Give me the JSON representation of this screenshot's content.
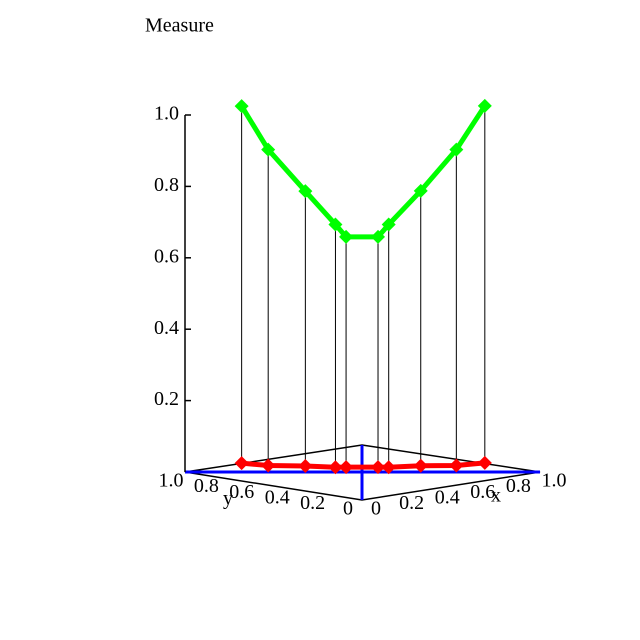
{
  "chart_data": {
    "type": "line3d",
    "title": "Measure",
    "xlabel": "x",
    "ylabel": "y",
    "xlim": [
      0,
      1
    ],
    "ylim": [
      0,
      1
    ],
    "zlim": [
      0,
      1
    ],
    "xticks": [
      0,
      0.2,
      0.4,
      0.6,
      0.8,
      {
        "value": 1,
        "label": "1.0"
      }
    ],
    "yticks": [
      0,
      0.2,
      0.4,
      0.6,
      0.8,
      {
        "value": 1,
        "label": "1.0"
      }
    ],
    "zticks": [
      0.2,
      0.4,
      0.6,
      0.8,
      {
        "value": 1,
        "label": "1.0"
      }
    ],
    "stems": true,
    "series": [
      {
        "color": "#00ff00",
        "x": [
          0,
          0,
          0,
          0,
          0,
          0.09,
          0.15,
          0.33,
          0.53,
          0.69
        ],
        "y": [
          0.68,
          0.53,
          0.32,
          0.15,
          0.09,
          0,
          0,
          0,
          0,
          0
        ],
        "z": [
          1.05,
          0.94,
          0.84,
          0.76,
          0.73,
          0.73,
          0.76,
          0.84,
          0.94,
          1.05
        ]
      },
      {
        "color": "#ff0000",
        "x": [
          0,
          0,
          0,
          0,
          0,
          0.09,
          0.15,
          0.33,
          0.53,
          0.69
        ],
        "y": [
          0.68,
          0.53,
          0.32,
          0.15,
          0.09,
          0,
          0,
          0,
          0,
          0
        ],
        "z": [
          0.05,
          0.055,
          0.07,
          0.08,
          0.085,
          0.085,
          0.08,
          0.07,
          0.055,
          0.05
        ]
      }
    ]
  }
}
